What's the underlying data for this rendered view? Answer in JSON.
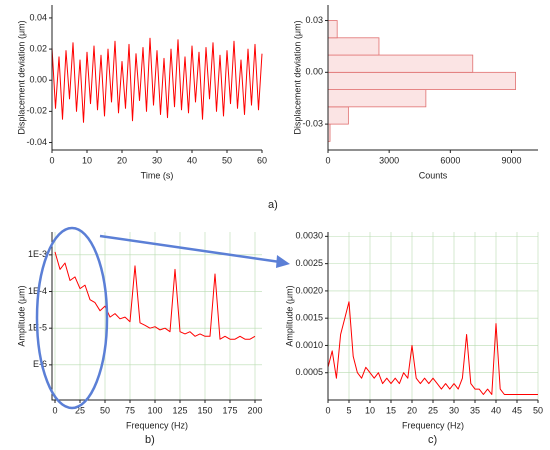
{
  "panel_labels": [
    "a)",
    "b)",
    "c)"
  ],
  "chart_data": [
    {
      "type": "line",
      "xlabel": "Time (s)",
      "ylabel": "Displacement deviation (μm)",
      "x": [
        0,
        1,
        2,
        3,
        4,
        5,
        6,
        7,
        8,
        9,
        10,
        11,
        12,
        13,
        14,
        15,
        16,
        17,
        18,
        19,
        20,
        21,
        22,
        23,
        24,
        25,
        26,
        27,
        28,
        29,
        30,
        31,
        32,
        33,
        34,
        35,
        36,
        37,
        38,
        39,
        40,
        41,
        42,
        43,
        44,
        45,
        46,
        47,
        48,
        49,
        50,
        51,
        52,
        53,
        54,
        55,
        56,
        57,
        58,
        59,
        60
      ],
      "series": [
        {
          "color": "#ff0000",
          "values": [
            0.021,
            -0.018,
            0.015,
            -0.025,
            0.019,
            -0.012,
            0.024,
            -0.02,
            0.013,
            -0.027,
            0.018,
            -0.015,
            0.022,
            -0.019,
            0.016,
            -0.023,
            0.02,
            -0.014,
            0.025,
            -0.021,
            0.012,
            -0.018,
            0.023,
            -0.026,
            0.017,
            -0.013,
            0.021,
            -0.02,
            0.027,
            -0.016,
            0.019,
            -0.022,
            0.014,
            -0.024,
            0.02,
            -0.017,
            0.026,
            -0.019,
            0.015,
            -0.021,
            0.022,
            -0.014,
            0.018,
            -0.025,
            0.021,
            -0.012,
            0.024,
            -0.02,
            0.016,
            -0.023,
            0.019,
            -0.015,
            0.025,
            -0.018,
            0.013,
            -0.022,
            0.02,
            -0.016,
            0.023,
            -0.019,
            0.017
          ]
        }
      ],
      "xlim": [
        0,
        60
      ],
      "xticks": [
        0,
        10,
        20,
        30,
        40,
        50,
        60
      ],
      "ylim": [
        -0.0448,
        0.0483
      ],
      "yticks": [
        -0.04,
        -0.02,
        {
          "value": 0,
          "label": "0.00"
        },
        0.02,
        0.04
      ],
      "grid": false
    },
    {
      "type": "histogram",
      "orientation": "horizontal",
      "xlabel": "Counts",
      "ylabel": "Displacement deviation (μm)",
      "bins": [
        -0.04,
        -0.03,
        -0.02,
        -0.01,
        0,
        0.01,
        0.02,
        0.03
      ],
      "values": [
        100,
        1000,
        4800,
        9200,
        7100,
        2500,
        450
      ],
      "color": "#fbe4e4",
      "edge_color": "#e07070",
      "xlim": [
        0,
        10300
      ],
      "xticks": [
        0,
        3000,
        6000,
        9000
      ],
      "ylim": [
        -0.045,
        0.039
      ],
      "yticks": [
        -0.03,
        {
          "value": 0,
          "label": "0.00"
        },
        0.03
      ],
      "grid": false
    },
    {
      "type": "line",
      "xlabel": "Frequency (Hz)",
      "ylabel": "Amplitude (μm)",
      "ylog": true,
      "x": [
        0,
        5,
        10,
        15,
        20,
        25,
        30,
        35,
        40,
        45,
        50,
        55,
        60,
        65,
        70,
        75,
        80,
        85,
        90,
        95,
        100,
        105,
        110,
        115,
        120,
        125,
        130,
        135,
        140,
        145,
        150,
        155,
        160,
        165,
        170,
        175,
        180,
        185,
        190,
        195,
        200
      ],
      "series": [
        {
          "color": "#ff0000",
          "values": [
            0.0012,
            0.0004,
            0.0006,
            0.0002,
            0.00025,
            0.00012,
            0.00015,
            6e-05,
            5e-05,
            3e-05,
            4e-05,
            2e-05,
            2.5e-05,
            1.8e-05,
            2e-05,
            1.5e-05,
            0.0005,
            1.4e-05,
            1.2e-05,
            1e-05,
            1.1e-05,
            9e-06,
            1e-05,
            8e-06,
            0.0004,
            8e-06,
            7e-06,
            8e-06,
            6e-06,
            7e-06,
            6e-06,
            6e-06,
            0.0003,
            5e-06,
            6e-06,
            5e-06,
            5e-06,
            6e-06,
            5e-06,
            5e-06,
            6e-06
          ]
        }
      ],
      "xlim": [
        -3,
        207
      ],
      "xticks": [
        0,
        25,
        50,
        75,
        100,
        125,
        150,
        175,
        200
      ],
      "ylim": [
        1.1e-07,
        0.0042
      ],
      "yticks": [
        {
          "value": 0.001,
          "label": "1E-3"
        },
        {
          "value": 0.0001,
          "label": "1E-4"
        },
        {
          "value": 1e-05,
          "label": "1E-5"
        },
        {
          "value": 1e-06,
          "label": "E-6"
        }
      ],
      "grid": true
    },
    {
      "type": "line",
      "xlabel": "Frequency (Hz)",
      "ylabel": "Amplitude (μm)",
      "x": [
        0,
        1,
        2,
        3,
        4,
        5,
        6,
        7,
        8,
        9,
        10,
        11,
        12,
        13,
        14,
        15,
        16,
        17,
        18,
        19,
        20,
        21,
        22,
        23,
        24,
        25,
        26,
        27,
        28,
        29,
        30,
        31,
        32,
        33,
        34,
        35,
        36,
        37,
        38,
        39,
        40,
        41,
        42,
        43,
        44,
        45,
        46,
        47,
        48,
        49,
        50
      ],
      "series": [
        {
          "color": "#ff0000",
          "values": [
            0.0006,
            0.0009,
            0.0004,
            0.0012,
            0.0015,
            0.0018,
            0.0008,
            0.0005,
            0.0004,
            0.0006,
            0.0005,
            0.0004,
            0.0005,
            0.0003,
            0.0004,
            0.0003,
            0.0004,
            0.0003,
            0.0005,
            0.0004,
            0.001,
            0.0004,
            0.0003,
            0.0004,
            0.0003,
            0.0004,
            0.0003,
            0.0002,
            0.0003,
            0.0002,
            0.0003,
            0.0002,
            0.0004,
            0.0012,
            0.0003,
            0.0002,
            0.0002,
            0.0001,
            0.0002,
            0.0001,
            0.0014,
            0.0002,
            0.0001,
            0.0001,
            0.0001,
            0.0001,
            0.0001,
            0.0001,
            0.0001,
            0.0001,
            0.0001
          ]
        }
      ],
      "xlim": [
        0,
        50
      ],
      "xticks": [
        0,
        5,
        10,
        15,
        20,
        25,
        30,
        35,
        40,
        45,
        50
      ],
      "ylim": [
        0,
        0.00308
      ],
      "yticks": [
        {
          "value": 0.0005,
          "label": "0.0005"
        },
        {
          "value": 0.001,
          "label": "0.0010"
        },
        {
          "value": 0.0015,
          "label": "0.0015"
        },
        {
          "value": 0.002,
          "label": "0.0020"
        },
        {
          "value": 0.0025,
          "label": "0.0025"
        },
        {
          "value": 0.003,
          "label": "0.0030"
        }
      ],
      "grid": true
    }
  ]
}
